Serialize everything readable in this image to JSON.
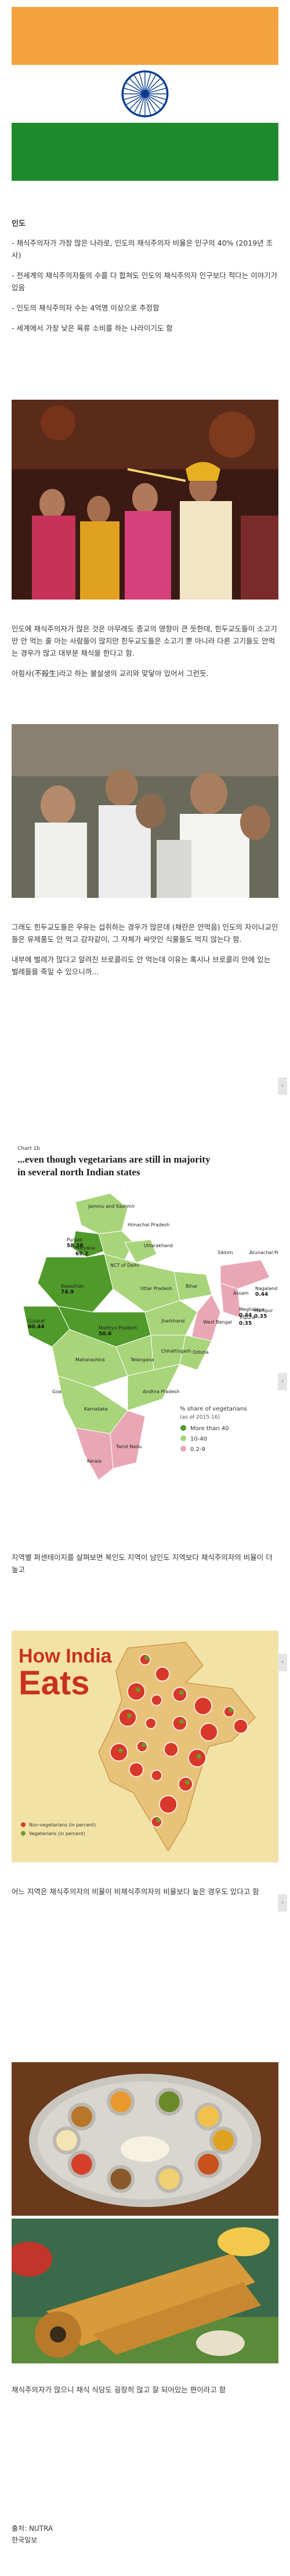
{
  "intro": {
    "heading": "인도",
    "bullets": [
      "- 채식주의자가 가장 많은 나라로, 인도의 채식주의자 비율은 인구의 40% (2019년 조사)",
      "- 전세계의 채식주의자들의 수를 다 합쳐도 인도의 채식주의자 인구보다 적다는 이야기가 있음",
      "- 인도의 채식주의자 수는 4억명 이상으로 추정함",
      "- 세계에서 가장 낮은 육류 소비를 하는 나라이기도 함"
    ]
  },
  "para1": "인도에 채식주의자가 많은 것은 아무래도 종교의 영향이 큰 듯한데, 힌두교도들이 소고기만 안 먹는 줄 아는 사람들이 많지만 힌두교도들은 소고기 뿐 아니라 다른 고기들도 안먹는 경우가 많고 대부분 채식을 한다고 함.",
  "para2": "아힘사(不殺生)라고 하는 불살생의 교리와 맞닿아 있어서 그런듯.",
  "para3": "그래도 힌두교도들은 우유는 섭취하는 경우가 많은데 (채란은 안먹음) 인도의 자이나교인들은 유제품도 안 먹고 감자같이, 그 자체가 싸앗인 식물들도 먹지 않는다 함.",
  "para4": "내부에 벌레가 많다고 알려진 브로콜리도 안 먹는데 이유는 혹시나 브로콜리 안에 있는 벌레들을 죽일 수 있으니까...",
  "map_chart": {
    "note": "Chart 1b",
    "headline_line1": "...even though vegetarians are still in majority",
    "headline_line2": "in several north Indian states",
    "legend_title": "% share of vegetarians",
    "legend_subtitle": "(as of 2015-16)",
    "legend_items": [
      {
        "label": "More than 40",
        "color": "#4f9a2a"
      },
      {
        "label": "10-40",
        "color": "#a8d47a"
      },
      {
        "label": "0.2-9",
        "color": "#e9a7b6"
      }
    ],
    "states": [
      {
        "name": "Jammu and Kashmir",
        "value": ""
      },
      {
        "name": "Punjab",
        "value": "58.38"
      },
      {
        "name": "Haryana",
        "value": "69.2"
      },
      {
        "name": "Himachal Pradesh",
        "value": ""
      },
      {
        "name": "Uttarakhand",
        "value": ""
      },
      {
        "name": "NCT of Delhi",
        "value": ""
      },
      {
        "name": "Rajasthan",
        "value": "74.9"
      },
      {
        "name": "Uttar Pradesh",
        "value": ""
      },
      {
        "name": "Gujarat",
        "value": "60.44"
      },
      {
        "name": "Madhya Pradesh",
        "value": "50.6"
      },
      {
        "name": "Bihar",
        "value": ""
      },
      {
        "name": "Jharkhand",
        "value": ""
      },
      {
        "name": "Sikkim",
        "value": ""
      },
      {
        "name": "Arunachal Pradesh",
        "value": ""
      },
      {
        "name": "Assam",
        "value": ""
      },
      {
        "name": "Nagaland",
        "value": "0.44"
      },
      {
        "name": "Meghalaya",
        "value": "0.44"
      },
      {
        "name": "Manipur",
        "value": "0.35"
      },
      {
        "name": "Tripura",
        "value": "0.35"
      },
      {
        "name": "West Bengal",
        "value": ""
      },
      {
        "name": "Chhattisgarh",
        "value": ""
      },
      {
        "name": "Odisha",
        "value": ""
      },
      {
        "name": "Maharashtra",
        "value": ""
      },
      {
        "name": "Telangana",
        "value": ""
      },
      {
        "name": "Andhra Pradesh",
        "value": ""
      },
      {
        "name": "Goa",
        "value": ""
      },
      {
        "name": "Karnataka",
        "value": ""
      },
      {
        "name": "Tamil Nadu",
        "value": ""
      },
      {
        "name": "Kerala",
        "value": ""
      }
    ]
  },
  "para5": "지역별 퍼센테이지를 살펴보면 북인도 지역이 남인도 지역보다 채식주의자의 비율이 더 높고",
  "eats_chart": {
    "title_line1": "How India",
    "title_line2": "Eats",
    "legend_items": [
      {
        "label": "Non-vegetarians (in percent)",
        "color": "#d8382a"
      },
      {
        "label": "Vegetarians (in percent)",
        "color": "#6a9a2c"
      }
    ],
    "background": "#f3e2a6"
  },
  "para6": "어느 지역은 채식주의자의 비율이 비채식주의자의 비율보다 높은 경우도 있다고 함",
  "para7": "채식주의자가 많으니 채식 식당도 굉장히 많고 잘 되어있는 편이라고 함",
  "footer": {
    "source1": "출처: NUTRA",
    "source2": "한국일보"
  },
  "side_arrow_icon": "›"
}
